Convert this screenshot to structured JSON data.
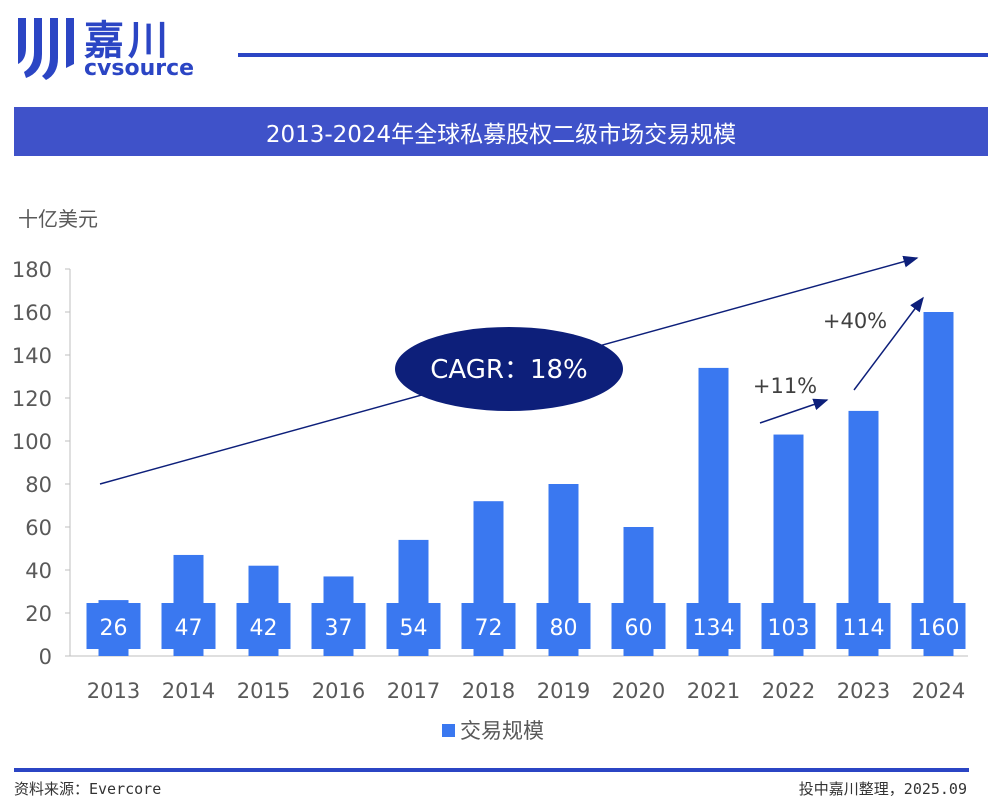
{
  "brand": {
    "name_cn": "嘉川",
    "name_en": "cvsource",
    "logo_color": "#2B45C4"
  },
  "title": "2013-2024年全球私募股权二级市场交易规模",
  "footer": {
    "source": "资料来源：Evercore",
    "note": "投中嘉川整理，2025.09"
  },
  "colors": {
    "bar": "#3A78F0",
    "banner": "#3F52C9",
    "ellipse": "#0D1F7A",
    "arrow": "#0D1F7A",
    "axis_text": "#595959"
  },
  "chart_data": {
    "type": "bar",
    "unit_label": "十亿美元",
    "categories": [
      "2013",
      "2014",
      "2015",
      "2016",
      "2017",
      "2018",
      "2019",
      "2020",
      "2021",
      "2022",
      "2023",
      "2024"
    ],
    "series": [
      {
        "name": "交易规模",
        "values": [
          26,
          47,
          42,
          37,
          54,
          72,
          80,
          60,
          134,
          103,
          114,
          160
        ]
      }
    ],
    "data_labels": [
      "26",
      "47",
      "42",
      "37",
      "54",
      "72",
      "80",
      "60",
      "134",
      "103",
      "114",
      "160"
    ],
    "yticks": [
      "0",
      "20",
      "40",
      "60",
      "80",
      "100",
      "120",
      "140",
      "160",
      "180"
    ],
    "ylim": [
      0,
      180
    ],
    "grid": false,
    "legend": "bottom-center",
    "annotations": {
      "cagr": "CAGR：18%",
      "growth_2022_2023": "+11%",
      "growth_2023_2024": "+40%"
    }
  }
}
